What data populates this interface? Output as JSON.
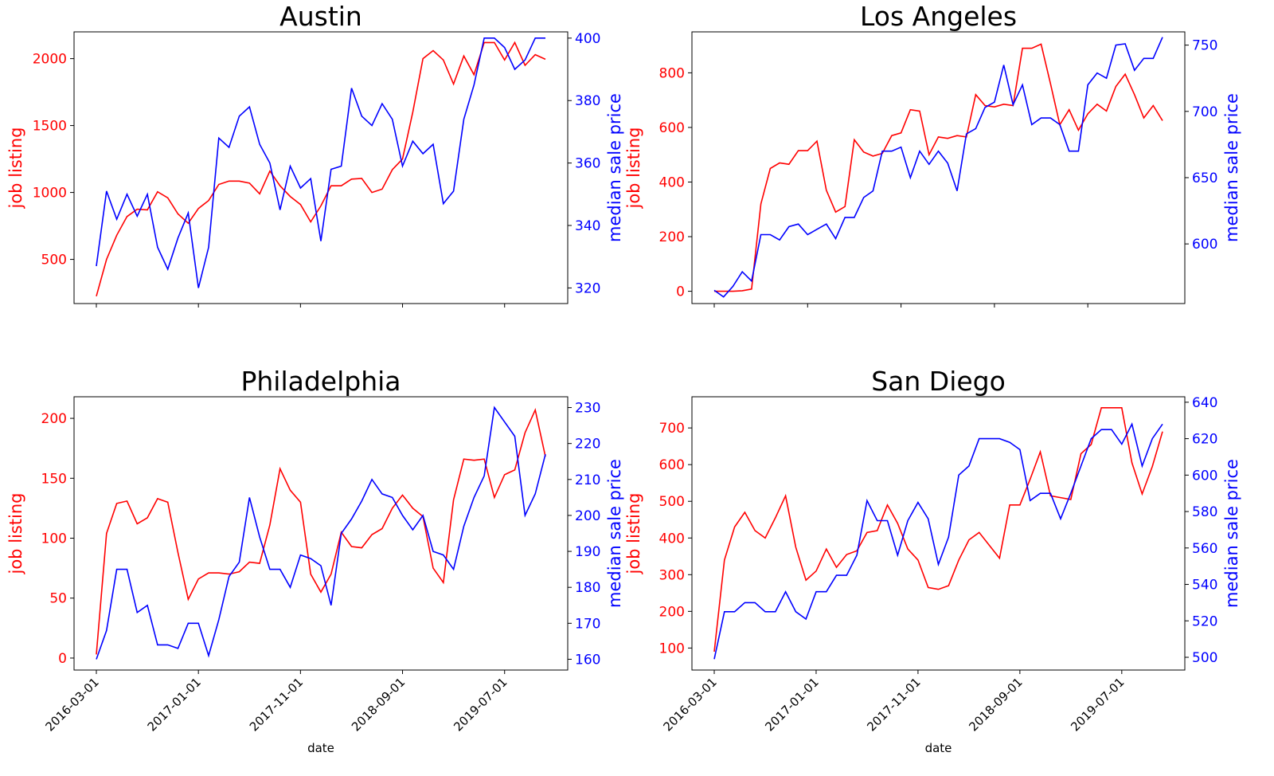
{
  "colors": {
    "listing": "#ff0000",
    "price": "#0000ff",
    "axis": "#000000"
  },
  "chart_data": [
    {
      "type": "line",
      "title": "Austin",
      "xlabel": "",
      "ylabel_left": "job listing",
      "ylabel_right": "median sale price",
      "left_ylim": [
        170,
        2200
      ],
      "left_ticks": [
        500,
        1000,
        1500,
        2000
      ],
      "right_ylim": [
        315,
        402
      ],
      "right_ticks": [
        320,
        340,
        360,
        380,
        400
      ],
      "x_tick_labels": [
        "2016-03-01",
        "2017-01-01",
        "2017-11-01",
        "2018-09-01",
        "2019-07-01"
      ],
      "series": [
        {
          "name": "job listing",
          "axis": "left",
          "values": [
            225,
            500,
            680,
            820,
            875,
            870,
            1005,
            960,
            840,
            770,
            880,
            940,
            1060,
            1085,
            1085,
            1070,
            990,
            1160,
            1050,
            970,
            910,
            780,
            900,
            1050,
            1050,
            1100,
            1105,
            1000,
            1025,
            1170,
            1250,
            1600,
            2000,
            2060,
            1990,
            1810,
            2020,
            1880,
            2120,
            2120,
            1990,
            2120,
            1950,
            2030,
            1995
          ]
        },
        {
          "name": "median sale price",
          "axis": "right",
          "values": [
            327,
            351,
            342,
            350,
            343,
            350,
            333,
            326,
            336,
            344,
            320,
            333,
            368,
            365,
            375,
            378,
            366,
            360,
            345,
            359,
            352,
            355,
            335,
            358,
            359,
            384,
            375,
            372,
            379,
            374,
            359,
            367,
            363,
            366,
            347,
            351,
            374,
            385,
            400,
            400,
            397,
            390,
            393,
            400,
            400
          ]
        }
      ],
      "show_x_ticklabels": false
    },
    {
      "type": "line",
      "title": "Los Angeles",
      "xlabel": "",
      "ylabel_left": "job listing",
      "ylabel_right": "median sale price",
      "left_ylim": [
        -45,
        950
      ],
      "left_ticks": [
        0,
        200,
        400,
        600,
        800
      ],
      "right_ylim": [
        555,
        760
      ],
      "right_ticks": [
        600,
        650,
        700,
        750
      ],
      "x_tick_labels": [
        "2016-03-01",
        "2017-01-01",
        "2017-11-01",
        "2018-09-01",
        "2019-07-01"
      ],
      "series": [
        {
          "name": "job listing",
          "axis": "left",
          "values": [
            0,
            0,
            0,
            2,
            8,
            320,
            450,
            470,
            465,
            515,
            515,
            550,
            370,
            290,
            310,
            555,
            510,
            495,
            505,
            570,
            580,
            665,
            660,
            500,
            565,
            560,
            570,
            565,
            720,
            680,
            675,
            685,
            680,
            890,
            890,
            905,
            760,
            610,
            665,
            590,
            650,
            685,
            660,
            750,
            795,
            720,
            635,
            680,
            625
          ]
        },
        {
          "name": "median sale price",
          "axis": "right",
          "values": [
            565,
            560,
            568,
            579,
            572,
            607,
            607,
            603,
            613,
            615,
            607,
            611,
            615,
            604,
            620,
            620,
            635,
            640,
            670,
            670,
            673,
            650,
            670,
            660,
            670,
            661,
            640,
            683,
            687,
            703,
            707,
            735,
            705,
            720,
            690,
            695,
            695,
            690,
            670,
            670,
            720,
            729,
            725,
            750,
            751,
            731,
            740,
            740,
            756
          ]
        }
      ],
      "show_x_ticklabels": false
    },
    {
      "type": "line",
      "title": "Philadelphia",
      "xlabel": "date",
      "ylabel_left": "job listing",
      "ylabel_right": "median sale price",
      "left_ylim": [
        -10,
        218
      ],
      "left_ticks": [
        0,
        50,
        100,
        150,
        200
      ],
      "right_ylim": [
        157,
        233
      ],
      "right_ticks": [
        160,
        170,
        180,
        190,
        200,
        210,
        220,
        230
      ],
      "x_tick_labels": [
        "2016-03-01",
        "2017-01-01",
        "2017-11-01",
        "2018-09-01",
        "2019-07-01"
      ],
      "series": [
        {
          "name": "job listing",
          "axis": "left",
          "values": [
            3,
            104,
            129,
            131,
            112,
            117,
            133,
            130,
            88,
            49,
            66,
            71,
            71,
            70,
            72,
            80,
            79,
            111,
            158,
            140,
            130,
            70,
            55,
            70,
            105,
            93,
            92,
            103,
            108,
            125,
            136,
            125,
            118,
            75,
            63,
            132,
            166,
            165,
            166,
            134,
            153,
            157,
            188,
            207,
            168
          ]
        },
        {
          "name": "median sale price",
          "axis": "right",
          "values": [
            160,
            168,
            185,
            185,
            173,
            175,
            164,
            164,
            163,
            170,
            170,
            161,
            171,
            183,
            187,
            205,
            194,
            185,
            185,
            180,
            189,
            188,
            186,
            175,
            195,
            199,
            204,
            210,
            206,
            205,
            200,
            196,
            200,
            190,
            189,
            185,
            197,
            205,
            211,
            230,
            226,
            222,
            200,
            206,
            217
          ]
        }
      ],
      "show_x_ticklabels": true
    },
    {
      "type": "line",
      "title": "San Diego",
      "xlabel": "date",
      "ylabel_left": "job listing",
      "ylabel_right": "median sale price",
      "left_ylim": [
        40,
        785
      ],
      "left_ticks": [
        100,
        200,
        300,
        400,
        500,
        600,
        700
      ],
      "right_ylim": [
        493,
        643
      ],
      "right_ticks": [
        500,
        520,
        540,
        560,
        580,
        600,
        620,
        640
      ],
      "x_tick_labels": [
        "2016-03-01",
        "2017-01-01",
        "2017-11-01",
        "2018-09-01",
        "2019-07-01"
      ],
      "series": [
        {
          "name": "job listing",
          "axis": "left",
          "values": [
            90,
            340,
            430,
            470,
            420,
            400,
            455,
            515,
            375,
            285,
            310,
            370,
            320,
            355,
            365,
            415,
            420,
            490,
            440,
            370,
            340,
            265,
            260,
            270,
            340,
            395,
            415,
            380,
            345,
            490,
            490,
            560,
            635,
            515,
            510,
            505,
            630,
            655,
            755,
            755,
            755,
            605,
            520,
            595,
            690
          ]
        },
        {
          "name": "median sale price",
          "axis": "right",
          "values": [
            499,
            525,
            525,
            530,
            530,
            525,
            525,
            536,
            525,
            521,
            536,
            536,
            545,
            545,
            556,
            586,
            575,
            575,
            556,
            575,
            585,
            576,
            551,
            566,
            600,
            605,
            620,
            620,
            620,
            618,
            614,
            586,
            590,
            590,
            576,
            590,
            605,
            620,
            625,
            625,
            617,
            628,
            605,
            620,
            628
          ]
        }
      ],
      "show_x_ticklabels": true
    }
  ]
}
